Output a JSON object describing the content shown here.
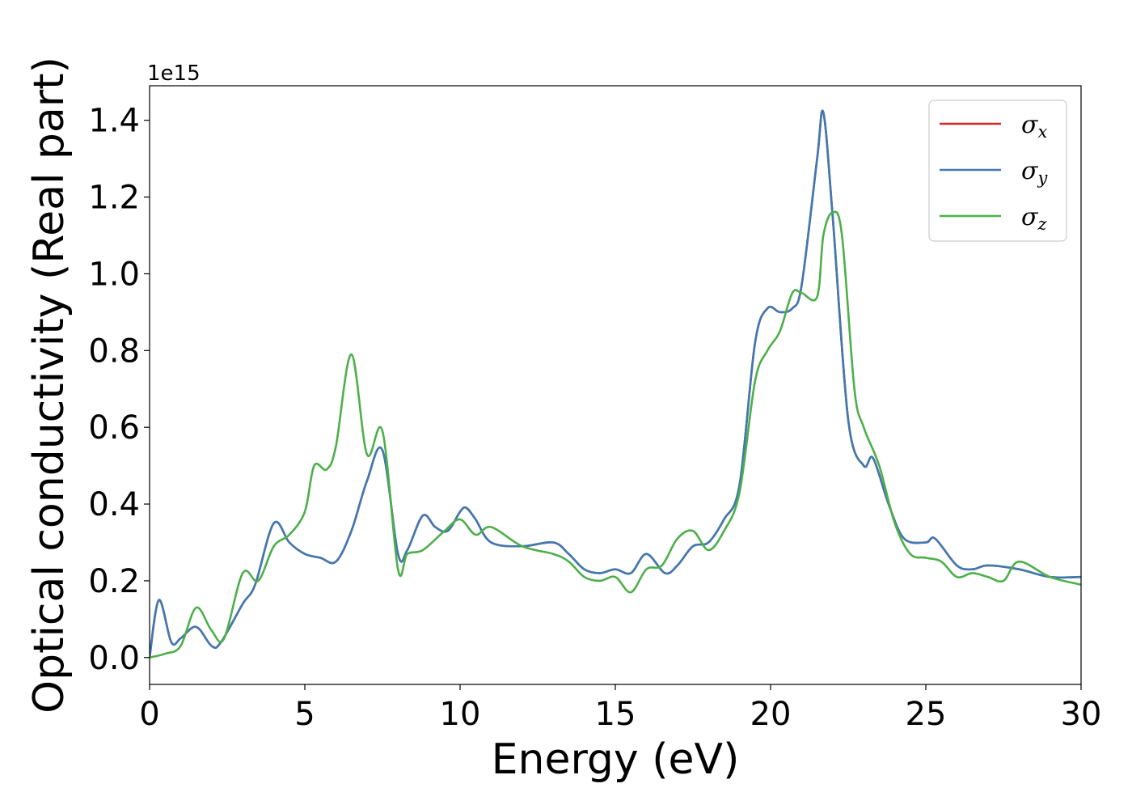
{
  "chart_data": {
    "type": "line",
    "title": "",
    "xlabel": "Energy (eV)",
    "ylabel": "Optical conductivity (Real part)",
    "y_offset_label": "1e15",
    "xlim": [
      0,
      30
    ],
    "ylim": [
      -0.07,
      1.49
    ],
    "x_ticks": [
      0,
      5,
      10,
      15,
      20,
      25,
      30
    ],
    "x_tick_labels": [
      "0",
      "5",
      "10",
      "15",
      "20",
      "25",
      "30"
    ],
    "y_ticks": [
      0.0,
      0.2,
      0.4,
      0.6,
      0.8,
      1.0,
      1.2,
      1.4
    ],
    "y_tick_labels": [
      "0.0",
      "0.2",
      "0.4",
      "0.6",
      "0.8",
      "1.0",
      "1.2",
      "1.4"
    ],
    "grid": false,
    "legend_position": "top-right",
    "series": [
      {
        "name": "σx",
        "legend_symbol": "σ",
        "legend_sub": "x",
        "color": "#d62728",
        "x": [
          0,
          0.3,
          0.7,
          1.0,
          1.5,
          2.0,
          2.3,
          3.0,
          3.4,
          4.0,
          4.5,
          5.0,
          5.5,
          6.0,
          6.5,
          7.0,
          7.5,
          8.0,
          8.3,
          8.8,
          9.2,
          9.6,
          10.0,
          10.2,
          10.5,
          11.0,
          12.0,
          13.0,
          13.5,
          14.0,
          14.5,
          15.0,
          15.5,
          16.0,
          16.6,
          17.0,
          17.5,
          18.0,
          18.5,
          19.0,
          19.5,
          19.9,
          20.3,
          20.7,
          21.0,
          21.5,
          21.7,
          22.0,
          22.5,
          23.0,
          23.3,
          23.8,
          24.3,
          25.0,
          25.3,
          26.0,
          26.5,
          27.0,
          28.0,
          29.0,
          30.0
        ],
        "values": [
          0.0,
          0.15,
          0.04,
          0.05,
          0.08,
          0.03,
          0.04,
          0.14,
          0.19,
          0.35,
          0.3,
          0.27,
          0.26,
          0.25,
          0.33,
          0.46,
          0.54,
          0.27,
          0.28,
          0.37,
          0.34,
          0.33,
          0.38,
          0.39,
          0.36,
          0.3,
          0.29,
          0.3,
          0.27,
          0.23,
          0.22,
          0.23,
          0.22,
          0.27,
          0.22,
          0.24,
          0.29,
          0.3,
          0.36,
          0.45,
          0.82,
          0.91,
          0.9,
          0.91,
          0.97,
          1.3,
          1.42,
          1.15,
          0.62,
          0.5,
          0.52,
          0.4,
          0.31,
          0.3,
          0.31,
          0.24,
          0.23,
          0.24,
          0.23,
          0.21,
          0.21
        ]
      },
      {
        "name": "σy",
        "legend_symbol": "σ",
        "legend_sub": "y",
        "color": "#3e7ab2",
        "x": [
          0,
          0.3,
          0.7,
          1.0,
          1.5,
          2.0,
          2.3,
          3.0,
          3.4,
          4.0,
          4.5,
          5.0,
          5.5,
          6.0,
          6.5,
          7.0,
          7.5,
          8.0,
          8.3,
          8.8,
          9.2,
          9.6,
          10.0,
          10.2,
          10.5,
          11.0,
          12.0,
          13.0,
          13.5,
          14.0,
          14.5,
          15.0,
          15.5,
          16.0,
          16.6,
          17.0,
          17.5,
          18.0,
          18.5,
          19.0,
          19.5,
          19.9,
          20.3,
          20.7,
          21.0,
          21.5,
          21.7,
          22.0,
          22.5,
          23.0,
          23.3,
          23.8,
          24.3,
          25.0,
          25.3,
          26.0,
          26.5,
          27.0,
          28.0,
          29.0,
          30.0
        ],
        "values": [
          0.0,
          0.15,
          0.04,
          0.05,
          0.08,
          0.03,
          0.04,
          0.14,
          0.19,
          0.35,
          0.3,
          0.27,
          0.26,
          0.25,
          0.33,
          0.46,
          0.54,
          0.27,
          0.28,
          0.37,
          0.34,
          0.33,
          0.38,
          0.39,
          0.36,
          0.3,
          0.29,
          0.3,
          0.27,
          0.23,
          0.22,
          0.23,
          0.22,
          0.27,
          0.22,
          0.24,
          0.29,
          0.3,
          0.36,
          0.45,
          0.82,
          0.91,
          0.9,
          0.91,
          0.97,
          1.3,
          1.42,
          1.15,
          0.62,
          0.5,
          0.52,
          0.4,
          0.31,
          0.3,
          0.31,
          0.24,
          0.23,
          0.24,
          0.23,
          0.21,
          0.21
        ]
      },
      {
        "name": "σz",
        "legend_symbol": "σ",
        "legend_sub": "z",
        "color": "#4daf4a",
        "x": [
          0,
          0.5,
          1.0,
          1.5,
          2.0,
          2.4,
          3.0,
          3.5,
          4.0,
          4.5,
          5.0,
          5.3,
          5.7,
          6.0,
          6.5,
          7.0,
          7.5,
          8.0,
          8.3,
          8.8,
          9.5,
          10.0,
          10.5,
          11.0,
          12.0,
          13.0,
          13.5,
          14.0,
          14.5,
          15.0,
          15.5,
          16.0,
          16.5,
          17.0,
          17.5,
          18.0,
          18.5,
          19.0,
          19.5,
          19.9,
          20.3,
          20.7,
          21.0,
          21.5,
          21.7,
          22.0,
          22.3,
          22.7,
          23.0,
          23.5,
          24.0,
          24.5,
          25.0,
          25.5,
          26.0,
          26.5,
          27.0,
          27.5,
          28.0,
          29.0,
          30.0
        ],
        "values": [
          0.0,
          0.01,
          0.03,
          0.13,
          0.07,
          0.05,
          0.22,
          0.2,
          0.29,
          0.32,
          0.38,
          0.5,
          0.49,
          0.55,
          0.79,
          0.53,
          0.59,
          0.23,
          0.27,
          0.28,
          0.33,
          0.36,
          0.32,
          0.34,
          0.29,
          0.27,
          0.25,
          0.21,
          0.2,
          0.21,
          0.17,
          0.23,
          0.24,
          0.31,
          0.33,
          0.28,
          0.33,
          0.43,
          0.72,
          0.8,
          0.85,
          0.95,
          0.95,
          0.94,
          1.1,
          1.16,
          1.1,
          0.7,
          0.6,
          0.5,
          0.35,
          0.27,
          0.26,
          0.25,
          0.21,
          0.22,
          0.21,
          0.2,
          0.25,
          0.21,
          0.19
        ]
      }
    ]
  }
}
